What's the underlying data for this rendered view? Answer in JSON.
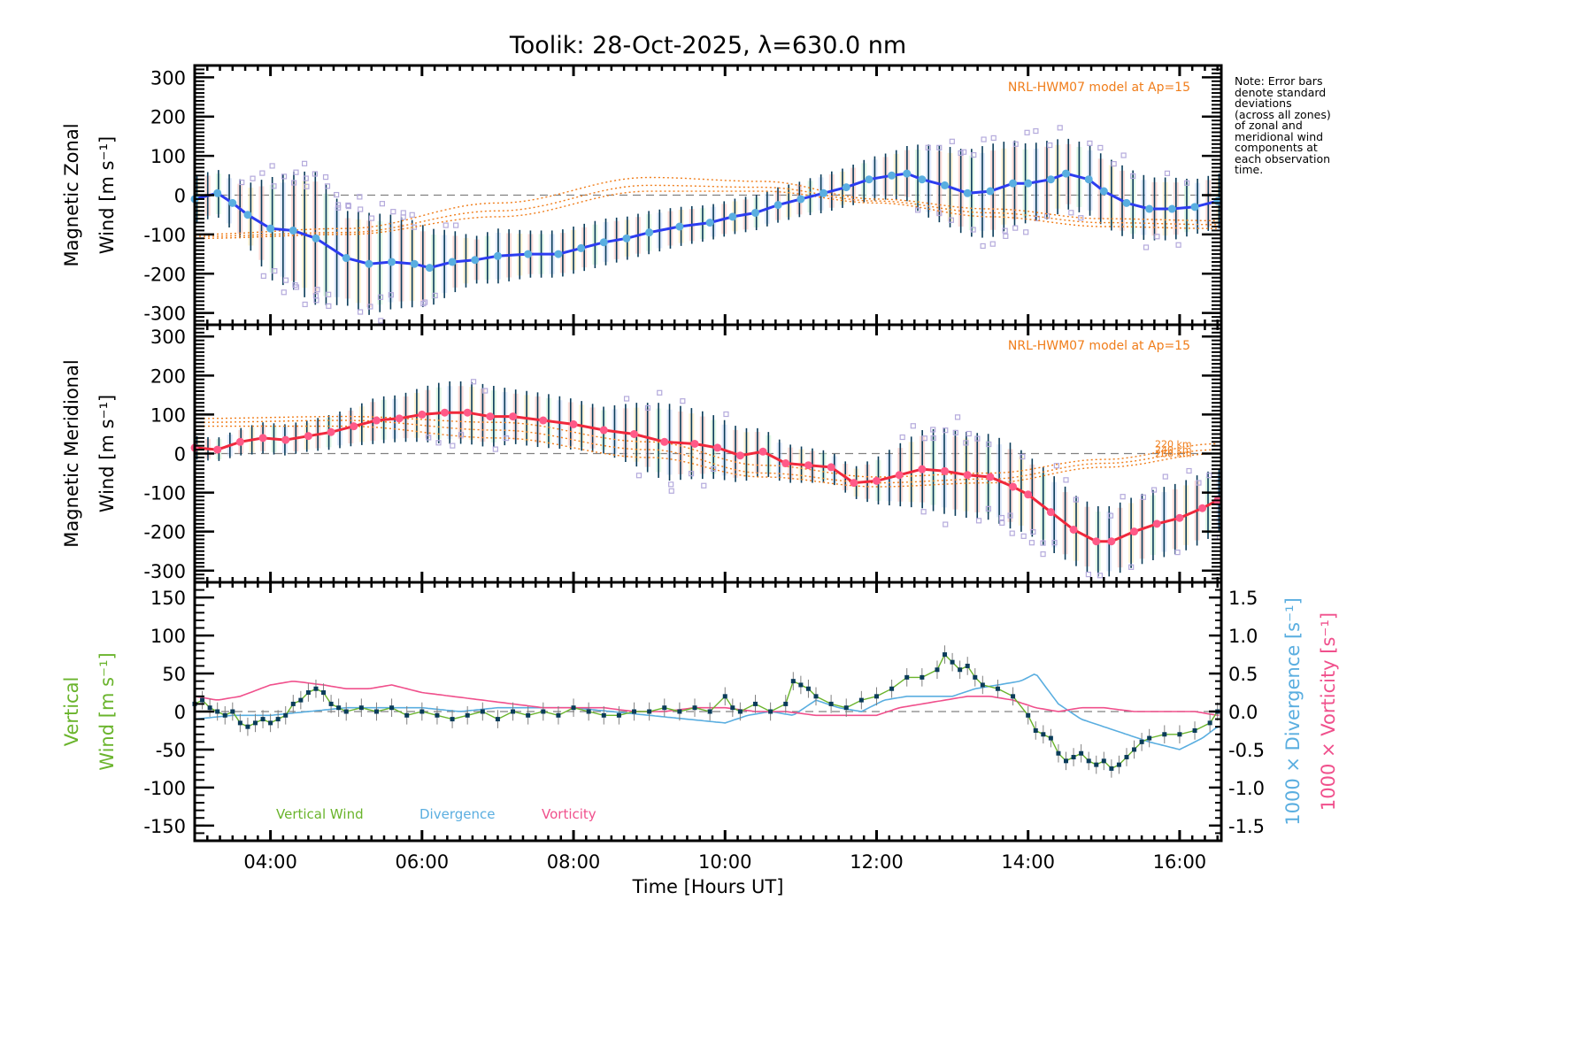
{
  "chart_data": [
    {
      "id": "zonal",
      "type": "line",
      "title": "Toolik: 28-Oct-2025, λ=630.0 nm",
      "ylabel_line1": "Magnetic Zonal",
      "ylabel_line2": "Wind [m s⁻¹]",
      "ylim": [
        -330,
        330
      ],
      "yticks": [
        -300,
        -200,
        -100,
        0,
        100,
        200,
        300
      ],
      "xlim": [
        3.0,
        16.55
      ],
      "grid": false,
      "annotation": "NRL-HWM07 model at Ap=15",
      "series": [
        {
          "name": "Mean zonal wind",
          "color": "#5aaee0",
          "line_color": "#2c3cf0",
          "x": [
            3.0,
            3.3,
            3.5,
            3.7,
            4.0,
            4.3,
            4.6,
            5.0,
            5.3,
            5.6,
            5.9,
            6.1,
            6.4,
            6.7,
            7.0,
            7.4,
            7.8,
            8.1,
            8.4,
            8.7,
            9.0,
            9.4,
            9.8,
            10.1,
            10.4,
            10.7,
            11.0,
            11.3,
            11.6,
            11.9,
            12.2,
            12.4,
            12.6,
            12.9,
            13.2,
            13.5,
            13.8,
            14.0,
            14.3,
            14.5,
            14.8,
            15.0,
            15.3,
            15.6,
            15.9,
            16.2,
            16.5
          ],
          "y": [
            -10,
            5,
            -20,
            -50,
            -85,
            -90,
            -110,
            -160,
            -175,
            -170,
            -175,
            -185,
            -170,
            -165,
            -155,
            -150,
            -150,
            -135,
            -120,
            -110,
            -95,
            -80,
            -70,
            -55,
            -45,
            -25,
            -10,
            5,
            20,
            40,
            50,
            55,
            40,
            25,
            5,
            10,
            30,
            30,
            40,
            55,
            40,
            10,
            -20,
            -35,
            -35,
            -30,
            -15
          ]
        },
        {
          "name": "NRL-HWM07 220 km",
          "color": "#f07d1a",
          "x": [
            3.0,
            5.0,
            7.0,
            9.0,
            10.5,
            12.0,
            13.5,
            15.0,
            16.5
          ],
          "y": [
            -100,
            -85,
            -20,
            45,
            35,
            -10,
            -35,
            -60,
            -65
          ]
        },
        {
          "name": "NRL-HWM07 240 km",
          "color": "#f07d1a",
          "x": [
            3.0,
            5.0,
            7.0,
            9.0,
            10.5,
            12.0,
            13.5,
            15.0,
            16.5
          ],
          "y": [
            -105,
            -95,
            -40,
            25,
            20,
            -15,
            -45,
            -70,
            -75
          ]
        },
        {
          "name": "NRL-HWM07 260 km",
          "color": "#f07d1a",
          "x": [
            3.0,
            5.0,
            7.0,
            9.0,
            10.5,
            12.0,
            13.5,
            15.0,
            16.5
          ],
          "y": [
            -110,
            -100,
            -55,
            10,
            10,
            -20,
            -55,
            -80,
            -85
          ]
        }
      ],
      "error_bar_std": [
        60,
        60,
        70,
        80,
        130,
        150,
        170,
        120,
        130,
        120,
        110,
        100,
        80,
        60,
        70,
        60,
        60,
        60,
        60,
        55,
        55,
        50,
        45,
        45,
        45,
        45,
        45,
        50,
        50,
        55,
        60,
        70,
        90,
        100,
        110,
        120,
        110,
        100,
        100,
        90,
        90,
        90,
        90,
        80,
        80,
        70,
        70
      ]
    },
    {
      "id": "meridional",
      "type": "line",
      "ylabel_line1": "Magnetic Meridional",
      "ylabel_line2": "Wind [m s⁻¹]",
      "ylim": [
        -330,
        330
      ],
      "yticks": [
        -300,
        -200,
        -100,
        0,
        100,
        200,
        300
      ],
      "xlim": [
        3.0,
        16.55
      ],
      "grid": false,
      "annotation": "NRL-HWM07 model at Ap=15",
      "model_labels": [
        "220 km",
        "240 km",
        "260 km"
      ],
      "series": [
        {
          "name": "Mean meridional wind",
          "color": "#ff5a88",
          "line_color": "#f0283c",
          "x": [
            3.0,
            3.3,
            3.6,
            3.9,
            4.2,
            4.5,
            4.8,
            5.1,
            5.4,
            5.7,
            6.0,
            6.3,
            6.6,
            6.9,
            7.2,
            7.6,
            8.0,
            8.4,
            8.8,
            9.2,
            9.6,
            9.9,
            10.2,
            10.5,
            10.8,
            11.1,
            11.4,
            11.7,
            12.0,
            12.3,
            12.6,
            12.9,
            13.2,
            13.5,
            13.8,
            14.0,
            14.3,
            14.6,
            14.9,
            15.1,
            15.4,
            15.7,
            16.0,
            16.3,
            16.5
          ],
          "y": [
            15,
            10,
            30,
            40,
            35,
            45,
            55,
            70,
            85,
            90,
            100,
            105,
            105,
            95,
            95,
            85,
            75,
            60,
            50,
            30,
            25,
            15,
            -5,
            5,
            -25,
            -30,
            -35,
            -75,
            -70,
            -55,
            -40,
            -45,
            -55,
            -60,
            -85,
            -105,
            -150,
            -195,
            -225,
            -225,
            -200,
            -180,
            -165,
            -140,
            -120
          ]
        },
        {
          "name": "NRL-HWM07 220 km",
          "color": "#f07d1a",
          "x": [
            3.0,
            5.0,
            7.0,
            9.0,
            10.5,
            12.0,
            13.5,
            15.0,
            16.5
          ],
          "y": [
            90,
            95,
            80,
            30,
            -30,
            -60,
            -50,
            -15,
            25
          ]
        },
        {
          "name": "NRL-HWM07 240 km",
          "color": "#f07d1a",
          "x": [
            3.0,
            5.0,
            7.0,
            9.0,
            10.5,
            12.0,
            13.5,
            15.0,
            16.5
          ],
          "y": [
            80,
            85,
            60,
            10,
            -50,
            -75,
            -65,
            -25,
            10
          ]
        },
        {
          "name": "NRL-HWM07 260 km",
          "color": "#f07d1a",
          "x": [
            3.0,
            5.0,
            7.0,
            9.0,
            10.5,
            12.0,
            13.5,
            15.0,
            16.5
          ],
          "y": [
            70,
            70,
            40,
            -10,
            -60,
            -85,
            -75,
            -35,
            0
          ]
        }
      ],
      "error_bar_std": [
        30,
        30,
        35,
        40,
        40,
        40,
        45,
        50,
        60,
        60,
        70,
        80,
        80,
        80,
        70,
        70,
        65,
        60,
        80,
        100,
        90,
        80,
        70,
        60,
        50,
        45,
        40,
        40,
        60,
        80,
        100,
        110,
        110,
        110,
        110,
        100,
        100,
        90,
        90,
        90,
        90,
        90,
        90,
        90,
        80
      ]
    },
    {
      "id": "vertical",
      "type": "line",
      "ylabel_left_line1": "Vertical",
      "ylabel_left_line2": "Wind [m s⁻¹]",
      "ylabel_right_1": "1000 × Divergence [s⁻¹]",
      "ylabel_right_2": "1000 × Vorticity [s⁻¹]",
      "ylim": [
        -170,
        170
      ],
      "yticks": [
        -150,
        -100,
        -50,
        0,
        50,
        100,
        150
      ],
      "ylim_right": [
        -1.7,
        1.7
      ],
      "yticks_right": [
        -1.5,
        -1.0,
        -0.5,
        0.0,
        0.5,
        1.0,
        1.5
      ],
      "xlim": [
        3.0,
        16.55
      ],
      "xlabel": "Time [Hours UT]",
      "xticks": [
        "04:00",
        "06:00",
        "08:00",
        "10:00",
        "12:00",
        "14:00",
        "16:00"
      ],
      "xtick_values": [
        4,
        6,
        8,
        10,
        12,
        14,
        16
      ],
      "legend": [
        "Vertical Wind",
        "Divergence",
        "Vorticity"
      ],
      "legend_position": "bottom-left",
      "series": [
        {
          "name": "Vertical Wind",
          "color": "#6ab42c",
          "marker_color": "#0a3c5a",
          "axis": "left",
          "x": [
            3.0,
            3.1,
            3.2,
            3.3,
            3.4,
            3.5,
            3.6,
            3.7,
            3.8,
            3.9,
            4.0,
            4.1,
            4.2,
            4.3,
            4.4,
            4.5,
            4.6,
            4.7,
            4.8,
            4.9,
            5.0,
            5.2,
            5.4,
            5.6,
            5.8,
            6.0,
            6.2,
            6.4,
            6.6,
            6.8,
            7.0,
            7.2,
            7.4,
            7.6,
            7.8,
            8.0,
            8.2,
            8.4,
            8.6,
            8.8,
            9.0,
            9.2,
            9.4,
            9.6,
            9.8,
            10.0,
            10.1,
            10.2,
            10.4,
            10.6,
            10.8,
            10.9,
            11.0,
            11.1,
            11.2,
            11.4,
            11.6,
            11.8,
            12.0,
            12.2,
            12.4,
            12.6,
            12.8,
            12.9,
            13.0,
            13.1,
            13.2,
            13.3,
            13.4,
            13.6,
            13.8,
            14.0,
            14.1,
            14.2,
            14.3,
            14.4,
            14.5,
            14.6,
            14.7,
            14.8,
            14.9,
            15.0,
            15.1,
            15.2,
            15.3,
            15.4,
            15.5,
            15.6,
            15.8,
            16.0,
            16.2,
            16.4,
            16.5
          ],
          "y": [
            10,
            15,
            5,
            0,
            -5,
            0,
            -15,
            -20,
            -15,
            -10,
            -15,
            -10,
            -5,
            10,
            15,
            25,
            30,
            25,
            10,
            5,
            0,
            5,
            0,
            5,
            -5,
            0,
            -5,
            -10,
            -5,
            0,
            -10,
            0,
            -5,
            0,
            -5,
            5,
            0,
            -5,
            -5,
            0,
            0,
            5,
            0,
            5,
            0,
            20,
            5,
            0,
            10,
            0,
            10,
            40,
            35,
            30,
            20,
            10,
            5,
            15,
            20,
            30,
            45,
            45,
            55,
            75,
            65,
            55,
            60,
            45,
            35,
            30,
            20,
            -5,
            -25,
            -30,
            -35,
            -55,
            -65,
            -60,
            -55,
            -65,
            -70,
            -65,
            -75,
            -70,
            -60,
            -50,
            -40,
            -35,
            -30,
            -30,
            -25,
            -15,
            0
          ]
        },
        {
          "name": "Divergence",
          "color": "#5aaee0",
          "axis": "right",
          "x": [
            3.0,
            3.5,
            4.0,
            4.5,
            5.0,
            5.5,
            6.0,
            6.5,
            7.0,
            7.5,
            8.0,
            8.5,
            9.0,
            9.5,
            10.0,
            10.3,
            10.6,
            10.9,
            11.2,
            11.5,
            11.8,
            12.1,
            12.4,
            12.7,
            13.0,
            13.3,
            13.6,
            13.9,
            14.1,
            14.4,
            14.7,
            15.0,
            15.3,
            15.6,
            16.0,
            16.3,
            16.5
          ],
          "y": [
            -0.1,
            -0.05,
            -0.05,
            0.0,
            0.05,
            0.05,
            0.05,
            0.0,
            0.05,
            0.05,
            0.05,
            0.0,
            -0.05,
            -0.1,
            -0.15,
            -0.05,
            0.0,
            -0.05,
            0.15,
            0.05,
            0.0,
            0.15,
            0.2,
            0.2,
            0.2,
            0.3,
            0.35,
            0.4,
            0.5,
            0.1,
            -0.1,
            -0.2,
            -0.3,
            -0.4,
            -0.5,
            -0.35,
            -0.2
          ]
        },
        {
          "name": "Vorticity",
          "color": "#f0508c",
          "axis": "right",
          "x": [
            3.0,
            3.3,
            3.6,
            4.0,
            4.3,
            4.7,
            5.0,
            5.3,
            5.6,
            6.0,
            6.4,
            6.8,
            7.2,
            7.6,
            8.0,
            8.4,
            8.8,
            9.2,
            9.6,
            10.0,
            10.4,
            10.8,
            11.2,
            11.6,
            12.0,
            12.3,
            12.6,
            12.9,
            13.2,
            13.5,
            13.8,
            14.1,
            14.4,
            14.7,
            15.0,
            15.4,
            15.8,
            16.2,
            16.5
          ],
          "y": [
            0.2,
            0.15,
            0.2,
            0.35,
            0.4,
            0.35,
            0.3,
            0.3,
            0.35,
            0.25,
            0.2,
            0.15,
            0.1,
            0.05,
            0.05,
            0.05,
            0.0,
            0.0,
            0.05,
            0.05,
            0.0,
            0.0,
            -0.05,
            -0.05,
            -0.05,
            0.05,
            0.1,
            0.15,
            0.2,
            0.2,
            0.15,
            0.05,
            0.0,
            0.05,
            0.05,
            0.0,
            0.0,
            0.0,
            -0.05
          ]
        }
      ]
    }
  ],
  "note": {
    "lines": [
      "Note: Error bars",
      "denote standard",
      "deviations",
      "(across all zones)",
      "of zonal and",
      "meridional wind",
      "components at",
      "each observation",
      "time."
    ]
  },
  "colors": {
    "model": "#f07d1a",
    "zone_scatter": "#b4aadc",
    "error_bar": "#0a3c5a",
    "axis": "#000000",
    "zero_line": "#808080",
    "vertical_label": "#6ab42c",
    "divergence_label": "#5aaee0",
    "vorticity_label": "#f0508c"
  }
}
